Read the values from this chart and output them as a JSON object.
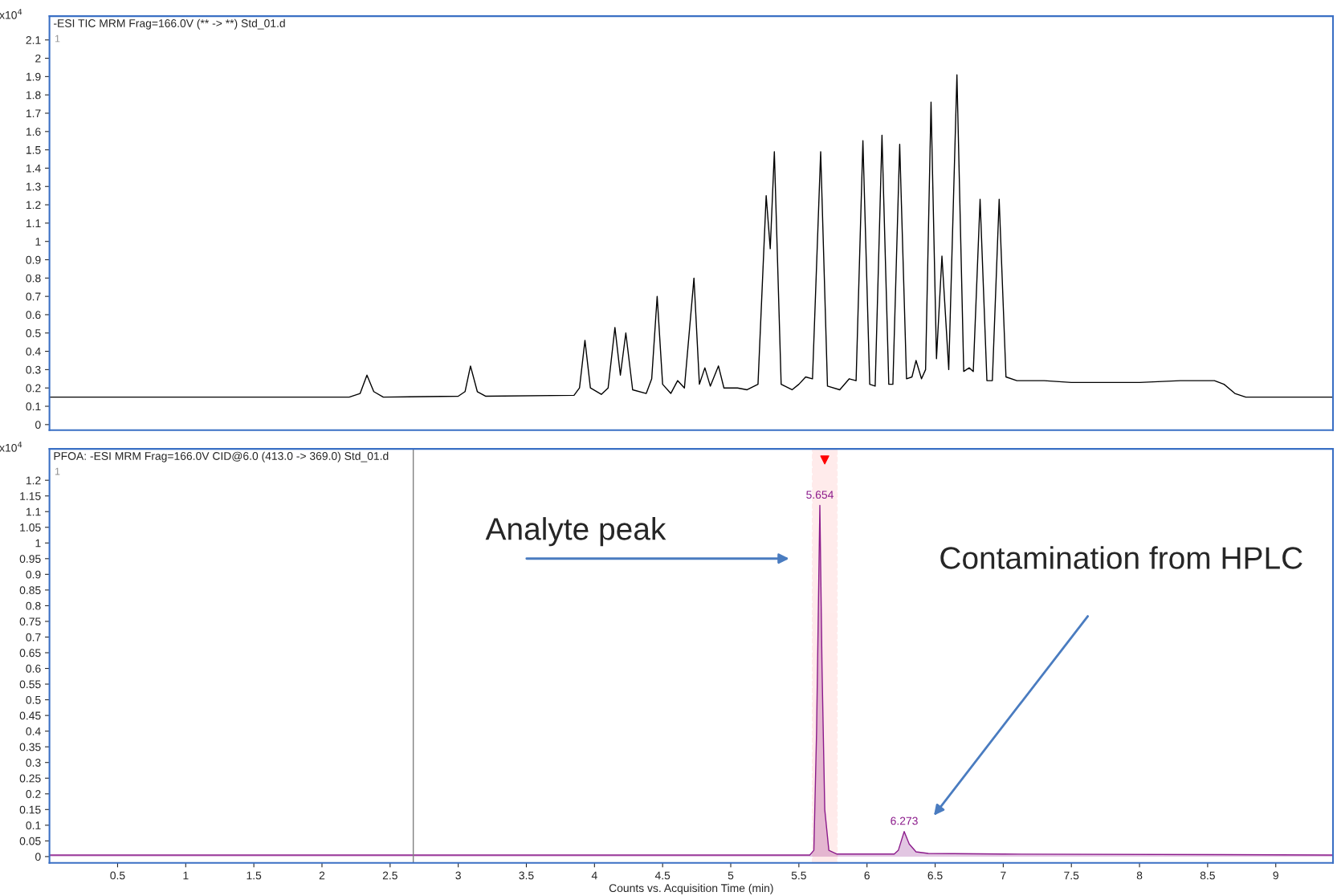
{
  "chart_data": [
    {
      "type": "line",
      "title": "-ESI TIC MRM Frag=166.0V (** -> **) Std_01.d",
      "ylabel": "x10$^{4}$",
      "tick_labels": "y",
      "grid": false,
      "annotations": [
        "1"
      ],
      "xlim": [
        0,
        9.42
      ],
      "ylim": [
        -0.03,
        2.23
      ],
      "yticks": [
        0,
        0.1,
        0.2,
        0.3,
        0.4,
        0.5,
        0.6,
        0.7,
        0.8,
        0.9,
        1,
        1.1,
        1.2,
        1.3,
        1.4,
        1.5,
        1.6,
        1.7,
        1.8,
        1.9,
        2,
        2.1
      ],
      "series": [
        {
          "color": "#000000",
          "x": [
            0,
            2.2,
            2.28,
            2.33,
            2.38,
            2.45,
            3.0,
            3.05,
            3.09,
            3.14,
            3.2,
            3.85,
            3.89,
            3.93,
            3.97,
            4.05,
            4.1,
            4.15,
            4.19,
            4.23,
            4.28,
            4.38,
            4.42,
            4.46,
            4.5,
            4.56,
            4.61,
            4.66,
            4.73,
            4.77,
            4.81,
            4.85,
            4.91,
            4.95,
            5.05,
            5.12,
            5.2,
            5.26,
            5.29,
            5.32,
            5.37,
            5.45,
            5.5,
            5.55,
            5.6,
            5.66,
            5.71,
            5.8,
            5.87,
            5.92,
            5.97,
            6.02,
            6.06,
            6.11,
            6.16,
            6.19,
            6.24,
            6.29,
            6.33,
            6.36,
            6.4,
            6.43,
            6.47,
            6.51,
            6.55,
            6.6,
            6.66,
            6.71,
            6.75,
            6.78,
            6.83,
            6.88,
            6.92,
            6.97,
            7.02,
            7.1,
            7.3,
            7.5,
            7.7,
            8.0,
            8.3,
            8.55,
            8.62,
            8.7,
            8.78,
            9.42
          ],
          "values": [
            0.15,
            0.15,
            0.17,
            0.27,
            0.18,
            0.15,
            0.155,
            0.18,
            0.32,
            0.18,
            0.155,
            0.16,
            0.2,
            0.46,
            0.2,
            0.165,
            0.2,
            0.53,
            0.27,
            0.5,
            0.19,
            0.17,
            0.25,
            0.7,
            0.22,
            0.17,
            0.24,
            0.2,
            0.8,
            0.22,
            0.31,
            0.21,
            0.32,
            0.2,
            0.2,
            0.19,
            0.22,
            1.25,
            0.96,
            1.49,
            0.22,
            0.19,
            0.22,
            0.26,
            0.25,
            1.49,
            0.21,
            0.19,
            0.25,
            0.24,
            1.55,
            0.22,
            0.21,
            1.58,
            0.22,
            0.22,
            1.53,
            0.25,
            0.26,
            0.35,
            0.25,
            0.3,
            1.76,
            0.36,
            0.92,
            0.3,
            1.91,
            0.29,
            0.31,
            0.29,
            1.23,
            0.24,
            0.24,
            1.23,
            0.26,
            0.24,
            0.24,
            0.23,
            0.23,
            0.23,
            0.24,
            0.24,
            0.22,
            0.17,
            0.15,
            0.15
          ]
        }
      ]
    },
    {
      "type": "area",
      "title": "PFOA: -ESI MRM Frag=166.0V CID@6.0 (413.0 -> 369.0) Std_01.d",
      "ylabel": "x10$^{4}$",
      "xlabel": "Counts vs. Acquisition Time (min)",
      "grid": false,
      "annotations": [
        "1",
        {
          "text": "5.654",
          "x": 5.654,
          "y": 1.12
        },
        {
          "text": "6.273",
          "x": 6.273,
          "y": 0.08
        },
        "Analyte peak",
        "Contamination from HPLC"
      ],
      "xlim": [
        0,
        9.42
      ],
      "ylim": [
        -0.02,
        1.3
      ],
      "xticks": [
        0.5,
        1,
        1.5,
        2,
        2.5,
        3,
        3.5,
        4,
        4.5,
        5,
        5.5,
        6,
        6.5,
        7,
        7.5,
        8,
        8.5,
        9
      ],
      "yticks": [
        0,
        0.05,
        0.1,
        0.15,
        0.2,
        0.25,
        0.3,
        0.35,
        0.4,
        0.45,
        0.5,
        0.55,
        0.6,
        0.65,
        0.7,
        0.75,
        0.8,
        0.85,
        0.9,
        0.95,
        1,
        1.05,
        1.1,
        1.15,
        1.2
      ],
      "ref_lines": [
        {
          "axis": "x",
          "value": 2.67,
          "color": "#808080"
        }
      ],
      "bands": [
        {
          "axis": "x",
          "from": 5.6,
          "to": 5.78,
          "color": "#ff0000"
        }
      ],
      "series": [
        {
          "color": "#8b1a8b",
          "x": [
            0,
            5.58,
            5.61,
            5.63,
            5.654,
            5.67,
            5.69,
            5.72,
            5.78,
            6.2,
            6.23,
            6.273,
            6.31,
            6.36,
            6.45,
            7.0,
            9.42
          ],
          "values": [
            0.005,
            0.005,
            0.02,
            0.4,
            1.12,
            0.6,
            0.15,
            0.02,
            0.008,
            0.008,
            0.02,
            0.08,
            0.04,
            0.015,
            0.01,
            0.008,
            0.005
          ]
        }
      ]
    }
  ]
}
